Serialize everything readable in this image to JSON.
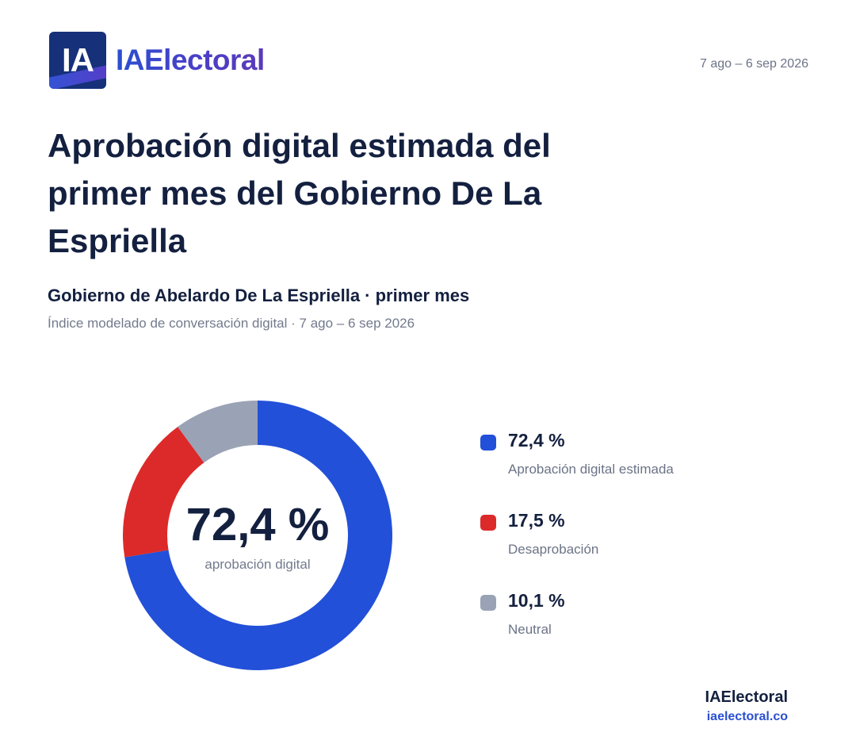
{
  "header": {
    "logo_mark": "IA",
    "logo_text": "IAElectoral",
    "date_range": "7 ago – 6 sep 2026"
  },
  "title": "Aprobación digital estimada del primer mes del Gobierno De La Espriella",
  "subtitle": "Gobierno de Abelardo De La Espriella · primer mes",
  "caption": "Índice modelado de conversación digital · 7 ago – 6 sep 2026",
  "chart_data": {
    "type": "pie",
    "donut": true,
    "categories": [
      "Aprobación digital estimada",
      "Desaprobación",
      "Neutral"
    ],
    "values": [
      72.4,
      17.5,
      10.1
    ],
    "value_labels": [
      "72,4 %",
      "17,5 %",
      "10,1 %"
    ],
    "colors": [
      "#2350d8",
      "#dc2a2a",
      "#9aa3b5"
    ],
    "start_angle_deg": 0,
    "direction": "clockwise",
    "center_value": "72,4 %",
    "center_label": "aprobación digital",
    "legend_position": "right"
  },
  "footer": {
    "brand": "IAElectoral",
    "url": "iaelectoral.co"
  }
}
